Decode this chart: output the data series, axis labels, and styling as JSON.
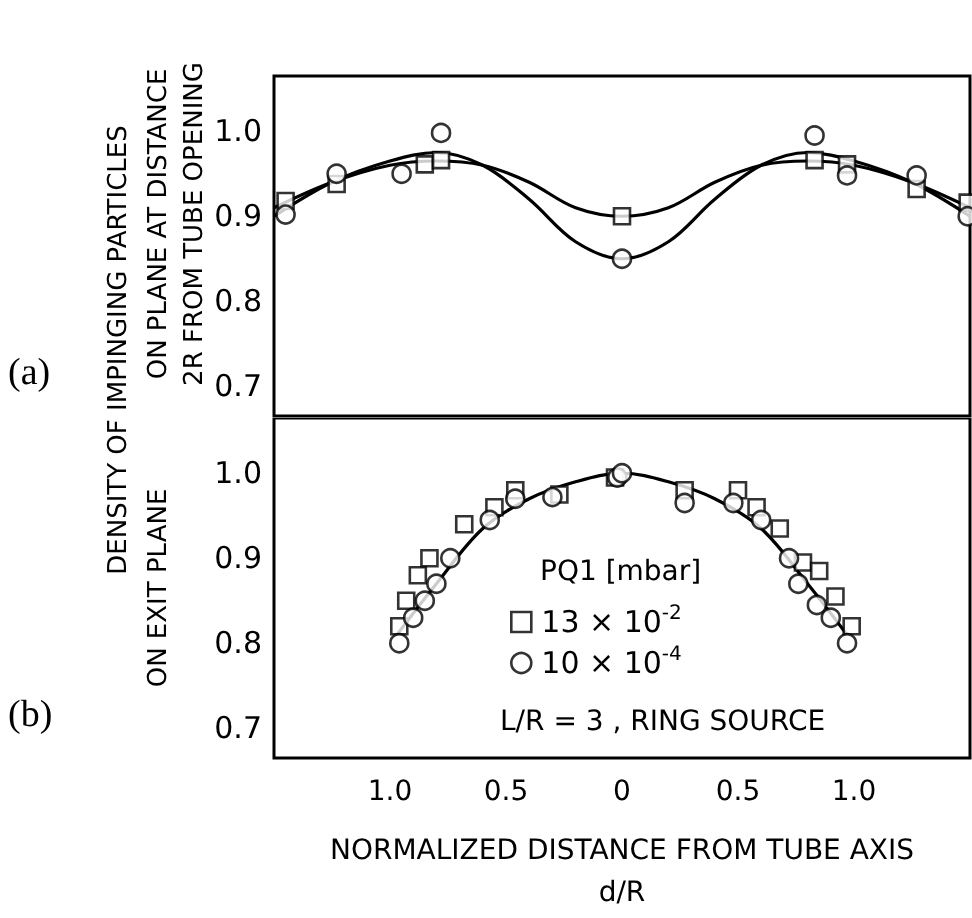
{
  "chart_data": [
    {
      "type": "scatter",
      "title": "(a)",
      "ylabel": "ON PLANE AT DISTANCE\n2R FROM TUBE OPENING",
      "tick_labels": "y",
      "xlim": [
        -1.5,
        1.5
      ],
      "ylim": [
        0.665,
        1.065
      ],
      "yticks": [
        {
          "value": 1.0,
          "label": "1.0"
        },
        {
          "value": 0.9,
          "label": "0.9"
        },
        {
          "value": 0.8,
          "label": "0.8"
        },
        {
          "value": 0.7,
          "label": "0.7"
        }
      ],
      "series": [
        {
          "marker": "square",
          "color": "#000000",
          "x": [
            -1.45,
            -1.23,
            -0.85,
            -0.78,
            0,
            0.83,
            0.97,
            1.27,
            1.49
          ],
          "values": [
            0.918,
            0.938,
            0.961,
            0.966,
            0.9,
            0.966,
            0.961,
            0.932,
            0.916
          ]
        },
        {
          "marker": "circle",
          "color": "#000000",
          "x": [
            -1.45,
            -1.23,
            -0.95,
            -0.78,
            0,
            0.83,
            0.97,
            1.27,
            1.49
          ],
          "values": [
            0.902,
            0.95,
            0.95,
            0.998,
            0.85,
            0.995,
            0.948,
            0.948,
            0.9
          ]
        },
        {
          "type": "line",
          "marker": "none",
          "color": "#000000",
          "x": [
            -1.5,
            -1.25,
            -1.0,
            -0.8,
            -0.6,
            -0.4,
            -0.2,
            0,
            0.2,
            0.4,
            0.6,
            0.8,
            1.0,
            1.25,
            1.5
          ],
          "values": [
            0.91,
            0.94,
            0.96,
            0.965,
            0.96,
            0.94,
            0.91,
            0.9,
            0.91,
            0.94,
            0.96,
            0.965,
            0.96,
            0.94,
            0.91
          ]
        },
        {
          "type": "line",
          "marker": "none",
          "color": "#000000",
          "x": [
            -1.5,
            -1.25,
            -1.0,
            -0.8,
            -0.6,
            -0.4,
            -0.2,
            0,
            0.2,
            0.4,
            0.6,
            0.8,
            1.0,
            1.25,
            1.5
          ],
          "values": [
            0.9,
            0.94,
            0.965,
            0.975,
            0.96,
            0.92,
            0.87,
            0.85,
            0.87,
            0.92,
            0.96,
            0.975,
            0.965,
            0.94,
            0.9
          ]
        }
      ]
    },
    {
      "type": "scatter",
      "title": "(b)",
      "ylabel": "DENSITY OF IMPINGING PARTICLES\nON EXIT PLANE",
      "xlabel": "NORMALIZED DISTANCE FROM TUBE AXIS\nd/R",
      "legend": "bottom",
      "legend_title": "PQ1 [mbar]",
      "annotations": [
        "L/R = 3 , RING SOURCE"
      ],
      "xlim": [
        -1.5,
        1.5
      ],
      "ylim": [
        0.665,
        1.065
      ],
      "xticks": [
        {
          "value": -1.0,
          "label": "1.0"
        },
        {
          "value": -0.5,
          "label": "0.5"
        },
        0,
        {
          "value": 0.5,
          "label": "0.5"
        },
        {
          "value": 1.0,
          "label": "1.0"
        }
      ],
      "yticks": [
        {
          "value": 1.0,
          "label": "1.0"
        },
        {
          "value": 0.9,
          "label": "0.9"
        },
        {
          "value": 0.8,
          "label": "0.8"
        },
        {
          "value": 0.7,
          "label": "0.7"
        }
      ],
      "series": [
        {
          "name": "13 × 10$^{-2}$",
          "marker": "square",
          "color": "#000000",
          "x": [
            -0.96,
            -0.93,
            -0.88,
            -0.83,
            -0.68,
            -0.55,
            -0.46,
            -0.27,
            -0.03,
            0.27,
            0.5,
            0.58,
            0.68,
            0.78,
            0.85,
            0.92,
            0.99
          ],
          "values": [
            0.82,
            0.85,
            0.88,
            0.9,
            0.94,
            0.96,
            0.98,
            0.975,
            0.995,
            0.98,
            0.98,
            0.96,
            0.935,
            0.895,
            0.885,
            0.855,
            0.82
          ]
        },
        {
          "name": "10 × 10$^{-4}$",
          "marker": "circle",
          "color": "#000000",
          "x": [
            -0.96,
            -0.9,
            -0.85,
            -0.8,
            -0.74,
            -0.57,
            -0.46,
            -0.3,
            -0.02,
            0.0,
            0.27,
            0.48,
            0.6,
            0.72,
            0.76,
            0.84,
            0.9,
            0.97
          ],
          "values": [
            0.8,
            0.83,
            0.85,
            0.87,
            0.9,
            0.945,
            0.97,
            0.972,
            0.995,
            1.0,
            0.965,
            0.965,
            0.945,
            0.9,
            0.87,
            0.845,
            0.83,
            0.8
          ]
        },
        {
          "type": "line",
          "marker": "none",
          "color": "#000000",
          "x": [
            -0.97,
            -0.8,
            -0.6,
            -0.4,
            -0.2,
            0,
            0.2,
            0.4,
            0.6,
            0.8,
            0.97
          ],
          "values": [
            0.81,
            0.87,
            0.935,
            0.97,
            0.99,
            1.0,
            0.99,
            0.97,
            0.935,
            0.87,
            0.81
          ]
        }
      ]
    }
  ]
}
